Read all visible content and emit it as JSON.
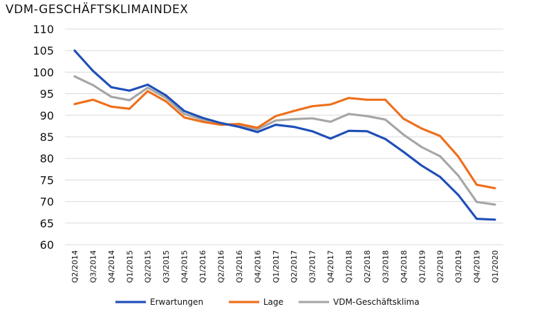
{
  "chart_data": {
    "type": "line",
    "title": "VDM-GESCHÄFTSKLIMAINDEX",
    "xlabel": "",
    "ylabel": "",
    "ylim": [
      60,
      110
    ],
    "yticks": [
      60,
      65,
      70,
      75,
      80,
      85,
      90,
      95,
      100,
      105,
      110
    ],
    "grid": true,
    "legend_position": "bottom",
    "categories": [
      "Q2/2014",
      "Q3/2014",
      "Q4/2014",
      "Q1/2015",
      "Q2/2015",
      "Q3/2015",
      "Q4/2015",
      "Q1/2016",
      "Q2/2016",
      "Q3/2016",
      "Q4/2016",
      "Q1/2017",
      "Q2/2017",
      "Q3/2017",
      "Q4/2017",
      "Q1/2018",
      "Q2/2018",
      "Q3/2018",
      "Q4/2018",
      "Q1/2019",
      "Q2/2019",
      "Q3/2019",
      "Q4/2019",
      "Q1/2020"
    ],
    "series": [
      {
        "name": "Erwartungen",
        "color": "#1f4fb8",
        "values": [
          105,
          100.3,
          96.5,
          95.7,
          97.1,
          94.6,
          91,
          89.4,
          88.2,
          87.3,
          86.1,
          87.8,
          87.3,
          86.3,
          84.6,
          86.4,
          86.3,
          84.5,
          81.5,
          78.3,
          75.7,
          71.5,
          66,
          65.8
        ]
      },
      {
        "name": "Lage",
        "color": "#ee6f1b",
        "values": [
          92.6,
          93.6,
          92,
          91.5,
          95.6,
          93.2,
          89.5,
          88.5,
          87.8,
          88,
          87.1,
          89.8,
          91,
          92.1,
          92.5,
          94,
          93.6,
          93.6,
          89.2,
          86.9,
          85.2,
          80.4,
          73.9,
          73.1
        ]
      },
      {
        "name": "VDM-Geschäftsklima",
        "color": "#a6a6a6",
        "values": [
          99,
          97,
          94.3,
          93.5,
          96.4,
          94,
          90.3,
          89,
          88,
          87.6,
          86.7,
          88.8,
          89.1,
          89.3,
          88.5,
          90.3,
          89.8,
          89,
          85.5,
          82.6,
          80.5,
          76,
          69.9,
          69.3
        ]
      }
    ]
  }
}
